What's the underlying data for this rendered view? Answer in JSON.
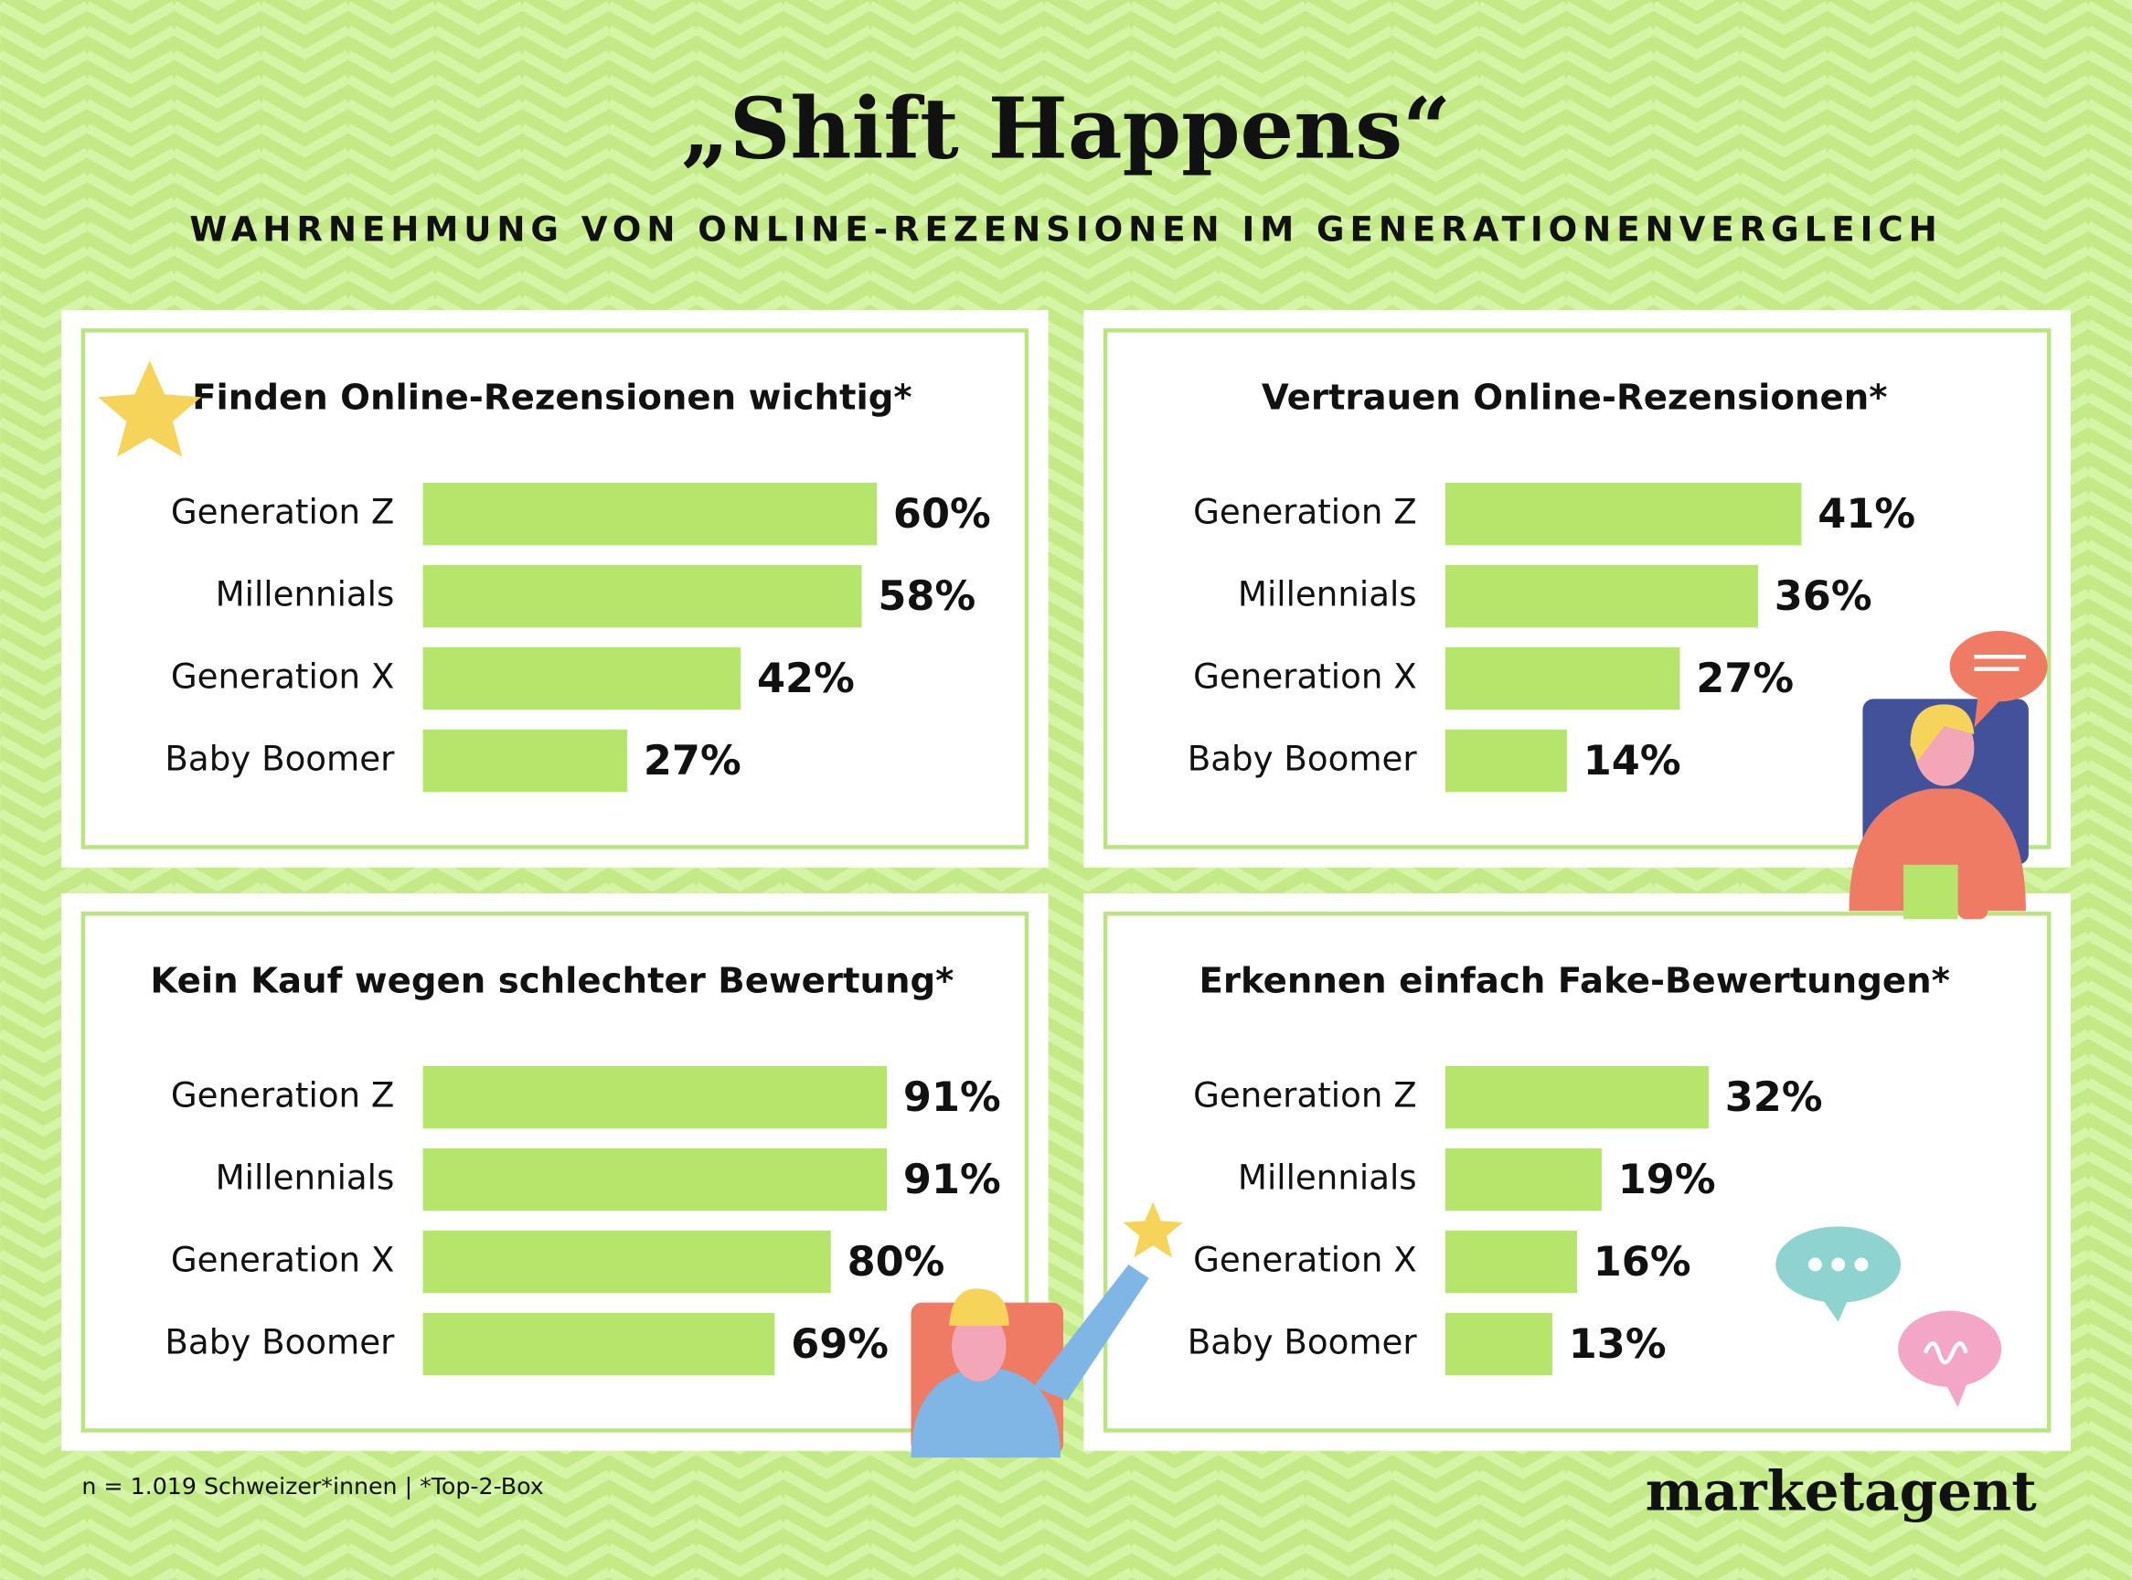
{
  "title": "„Shift Happens“",
  "subtitle": "WAHRNEHMUNG VON ONLINE-REZENSIONEN IM GENERATIONENVERGLEICH",
  "footnote": "n = 1.019 Schweizer*innen | *Top-2-Box",
  "logo": "marketagent",
  "chart_data": [
    {
      "type": "bar",
      "title": "Finden Online-Rezensionen wichtig*",
      "categories": [
        "Generation Z",
        "Millennials",
        "Generation X",
        "Baby Boomer"
      ],
      "values": [
        60,
        58,
        42,
        27
      ],
      "value_labels": [
        "60%",
        "58%",
        "42%",
        "27%"
      ],
      "color": "#b5e66b",
      "xlim": [
        0,
        62
      ]
    },
    {
      "type": "bar",
      "title": "Vertrauen Online-Rezensionen*",
      "categories": [
        "Generation Z",
        "Millennials",
        "Generation X",
        "Baby Boomer"
      ],
      "values": [
        41,
        36,
        27,
        14
      ],
      "value_labels": [
        "41%",
        "36%",
        "27%",
        "14%"
      ],
      "color": "#b5e66b",
      "xlim": [
        0,
        54
      ]
    },
    {
      "type": "bar",
      "title": "Kein Kauf wegen schlechter Bewertung*",
      "categories": [
        "Generation Z",
        "Millennials",
        "Generation X",
        "Baby Boomer"
      ],
      "values": [
        91,
        91,
        80,
        69
      ],
      "value_labels": [
        "91%",
        "91%",
        "80%",
        "69%"
      ],
      "color": "#b5e66b",
      "xlim": [
        0,
        92
      ]
    },
    {
      "type": "bar",
      "title": "Erkennen einfach Fake-Bewertungen*",
      "categories": [
        "Generation Z",
        "Millennials",
        "Generation X",
        "Baby Boomer"
      ],
      "values": [
        32,
        19,
        16,
        13
      ],
      "value_labels": [
        "32%",
        "19%",
        "16%",
        "13%"
      ],
      "color": "#b5e66b",
      "xlim": [
        0,
        57
      ]
    }
  ]
}
